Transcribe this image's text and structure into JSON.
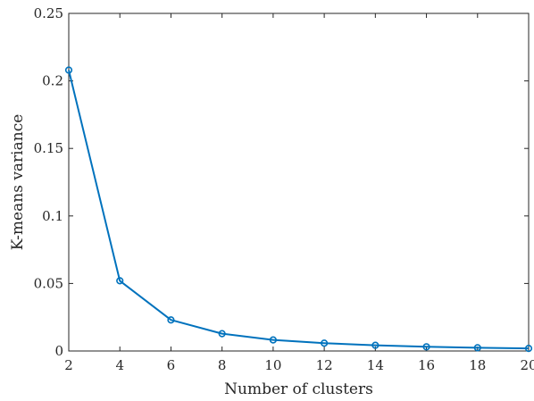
{
  "chart_data": {
    "type": "line",
    "xlabel": "Number of clusters",
    "ylabel": "K-means variance",
    "xlim": [
      2,
      20
    ],
    "ylim": [
      0,
      0.25
    ],
    "xticks": [
      2,
      4,
      6,
      8,
      10,
      12,
      14,
      16,
      18,
      20
    ],
    "xtick_labels": [
      "2",
      "4",
      "6",
      "8",
      "10",
      "12",
      "14",
      "16",
      "18",
      "20"
    ],
    "yticks": [
      0,
      0.05,
      0.1,
      0.15,
      0.2,
      0.25
    ],
    "ytick_labels": [
      "0",
      "0.05",
      "0.1",
      "0.15",
      "0.2",
      "0.25"
    ],
    "grid": false,
    "box": true,
    "series": [
      {
        "color": "#0072BD",
        "marker": "circle",
        "x": [
          2,
          4,
          6,
          8,
          10,
          12,
          14,
          16,
          18,
          20
        ],
        "y": [
          0.208,
          0.052,
          0.023,
          0.0128,
          0.0082,
          0.0058,
          0.0042,
          0.0031,
          0.0024,
          0.0019
        ]
      }
    ]
  }
}
